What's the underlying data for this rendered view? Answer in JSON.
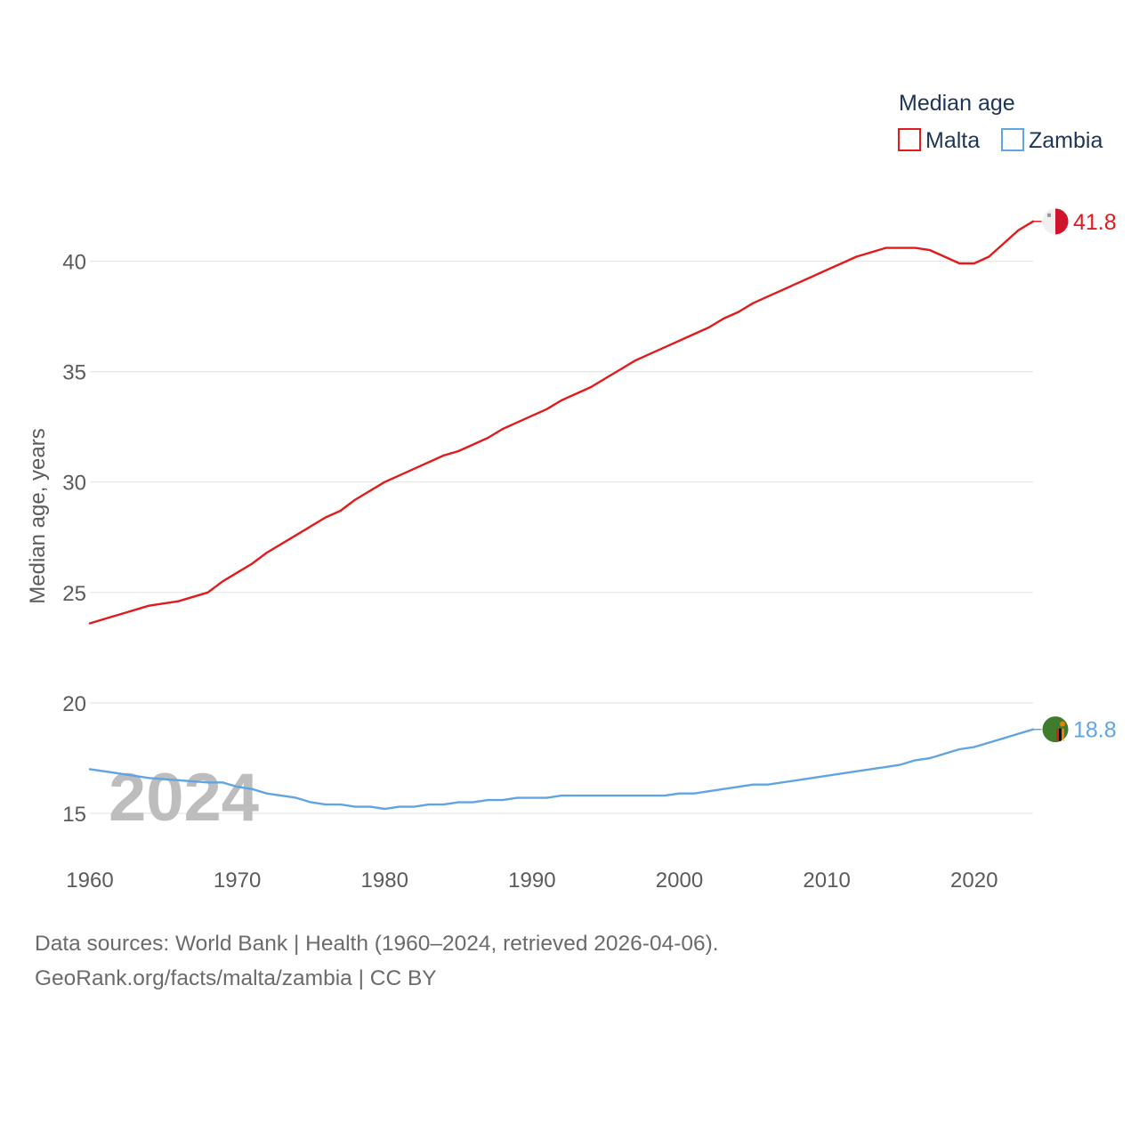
{
  "chart_data": {
    "type": "line",
    "legend_title": "Median age",
    "ylabel": "Median age, years",
    "xlabel": "",
    "xlim": [
      1960,
      2024
    ],
    "ylim": [
      13,
      43
    ],
    "yticks": [
      15,
      20,
      25,
      30,
      35,
      40
    ],
    "xticks": [
      1960,
      1970,
      1980,
      1990,
      2000,
      2010,
      2020
    ],
    "year_marker": "2024",
    "legend_position": "top-right",
    "series": [
      {
        "name": "Malta",
        "color": "#e31a1c",
        "end_label": "41.8",
        "flag_icon": "malta-flag-icon",
        "x": [
          1960,
          1962,
          1964,
          1966,
          1968,
          1969,
          1971,
          1972,
          1974,
          1976,
          1977,
          1978,
          1980,
          1982,
          1984,
          1985,
          1987,
          1988,
          1989,
          1990,
          1991,
          1992,
          1994,
          1995,
          1996,
          1997,
          1998,
          1999,
          2000,
          2001,
          2002,
          2003,
          2004,
          2005,
          2006,
          2007,
          2008,
          2009,
          2010,
          2011,
          2012,
          2014,
          2016,
          2017,
          2018,
          2019,
          2020,
          2021,
          2022,
          2023,
          2024
        ],
        "values": [
          23.6,
          24.0,
          24.4,
          24.6,
          25.0,
          25.5,
          26.3,
          26.8,
          27.6,
          28.4,
          28.7,
          29.2,
          30.0,
          30.6,
          31.2,
          31.4,
          32.0,
          32.4,
          32.7,
          33.0,
          33.3,
          33.7,
          34.3,
          34.7,
          35.1,
          35.5,
          35.8,
          36.1,
          36.4,
          36.7,
          37.0,
          37.4,
          37.7,
          38.1,
          38.4,
          38.7,
          39.0,
          39.3,
          39.6,
          39.9,
          40.2,
          40.6,
          40.6,
          40.5,
          40.2,
          39.9,
          39.9,
          40.2,
          40.8,
          41.4,
          41.8
        ]
      },
      {
        "name": "Zambia",
        "color": "#61a4e3",
        "end_label": "18.8",
        "flag_icon": "zambia-flag-icon",
        "x": [
          1960,
          1962,
          1964,
          1966,
          1968,
          1969,
          1970,
          1971,
          1972,
          1974,
          1975,
          1976,
          1977,
          1978,
          1979,
          1980,
          1981,
          1982,
          1983,
          1984,
          1985,
          1986,
          1987,
          1988,
          1989,
          1990,
          1991,
          1992,
          1994,
          1996,
          1998,
          1999,
          2000,
          2001,
          2002,
          2003,
          2004,
          2005,
          2006,
          2008,
          2010,
          2012,
          2014,
          2015,
          2016,
          2017,
          2018,
          2019,
          2020,
          2021,
          2022,
          2023,
          2024
        ],
        "values": [
          17.0,
          16.8,
          16.6,
          16.5,
          16.4,
          16.4,
          16.2,
          16.1,
          15.9,
          15.7,
          15.5,
          15.4,
          15.4,
          15.3,
          15.3,
          15.2,
          15.3,
          15.3,
          15.4,
          15.4,
          15.5,
          15.5,
          15.6,
          15.6,
          15.7,
          15.7,
          15.7,
          15.8,
          15.8,
          15.8,
          15.8,
          15.8,
          15.9,
          15.9,
          16.0,
          16.1,
          16.2,
          16.3,
          16.3,
          16.5,
          16.7,
          16.9,
          17.1,
          17.2,
          17.4,
          17.5,
          17.7,
          17.9,
          18.0,
          18.2,
          18.4,
          18.6,
          18.8
        ]
      }
    ]
  },
  "footer": {
    "line1": "Data sources: World Bank | Health (1960–2024, retrieved 2026-04-06).",
    "line2": "GeoRank.org/facts/malta/zambia | CC BY"
  }
}
